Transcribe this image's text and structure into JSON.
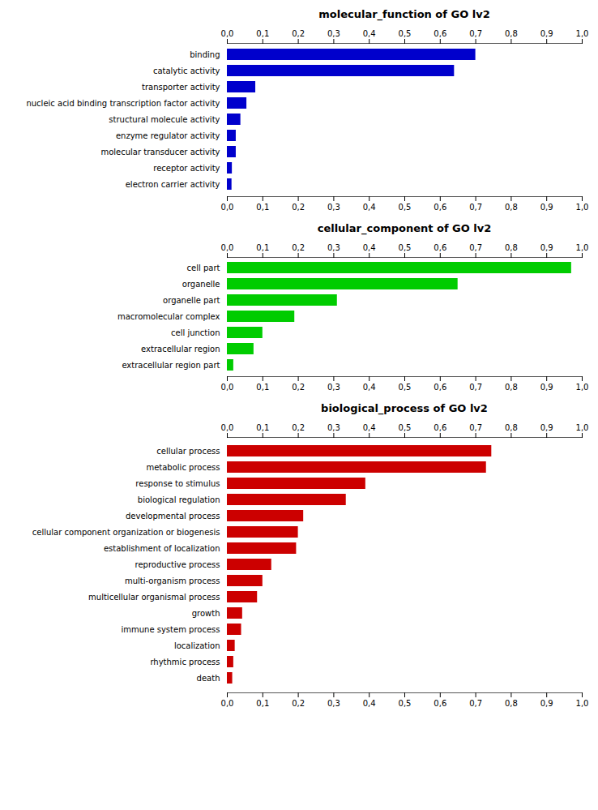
{
  "chart_data": [
    {
      "type": "bar",
      "orientation": "horizontal",
      "title": "molecular_function of GO lv2",
      "categories": [
        "binding",
        "catalytic activity",
        "transporter activity",
        "nucleic acid binding transcription factor activity",
        "structural molecule activity",
        "enzyme regulator activity",
        "molecular transducer activity",
        "receptor activity",
        "electron carrier activity"
      ],
      "values": [
        0.7,
        0.64,
        0.08,
        0.055,
        0.038,
        0.025,
        0.025,
        0.014,
        0.013
      ],
      "color": "#0000CC",
      "xlim": [
        0.0,
        1.0
      ],
      "xticks": [
        {
          "value": 0.0,
          "label": "0,0"
        },
        {
          "value": 0.1,
          "label": "0,1"
        },
        {
          "value": 0.2,
          "label": "0,2"
        },
        {
          "value": 0.3,
          "label": "0,3"
        },
        {
          "value": 0.4,
          "label": "0,4"
        },
        {
          "value": 0.5,
          "label": "0,5"
        },
        {
          "value": 0.6,
          "label": "0,6"
        },
        {
          "value": 0.7,
          "label": "0,7"
        },
        {
          "value": 0.8,
          "label": "0,8"
        },
        {
          "value": 0.9,
          "label": "0,9"
        },
        {
          "value": 1.0,
          "label": "1,0"
        }
      ],
      "grid": false
    },
    {
      "type": "bar",
      "orientation": "horizontal",
      "title": "cellular_component of GO lv2",
      "categories": [
        "cell part",
        "organelle",
        "organelle part",
        "macromolecular complex",
        "cell junction",
        "extracellular region",
        "extracellular region part"
      ],
      "values": [
        0.97,
        0.65,
        0.31,
        0.19,
        0.1,
        0.075,
        0.018
      ],
      "color": "#00CC00",
      "xlim": [
        0.0,
        1.0
      ],
      "xticks": [
        {
          "value": 0.0,
          "label": "0,0"
        },
        {
          "value": 0.1,
          "label": "0,1"
        },
        {
          "value": 0.2,
          "label": "0,2"
        },
        {
          "value": 0.3,
          "label": "0,3"
        },
        {
          "value": 0.4,
          "label": "0,4"
        },
        {
          "value": 0.5,
          "label": "0,5"
        },
        {
          "value": 0.6,
          "label": "0,6"
        },
        {
          "value": 0.7,
          "label": "0,7"
        },
        {
          "value": 0.8,
          "label": "0,8"
        },
        {
          "value": 0.9,
          "label": "0,9"
        },
        {
          "value": 1.0,
          "label": "1,0"
        }
      ],
      "grid": false
    },
    {
      "type": "bar",
      "orientation": "horizontal",
      "title": "biological_process of GO lv2",
      "categories": [
        "cellular process",
        "metabolic process",
        "response to stimulus",
        "biological regulation",
        "developmental process",
        "cellular component organization or biogenesis",
        "establishment of localization",
        "reproductive process",
        "multi-organism process",
        "multicellular organismal process",
        "growth",
        "immune system process",
        "localization",
        "rhythmic process",
        "death"
      ],
      "values": [
        0.745,
        0.73,
        0.39,
        0.335,
        0.215,
        0.2,
        0.195,
        0.125,
        0.1,
        0.085,
        0.043,
        0.04,
        0.022,
        0.018,
        0.015
      ],
      "color": "#CC0000",
      "xlim": [
        0.0,
        1.0
      ],
      "xticks": [
        {
          "value": 0.0,
          "label": "0,0"
        },
        {
          "value": 0.1,
          "label": "0,1"
        },
        {
          "value": 0.2,
          "label": "0,2"
        },
        {
          "value": 0.3,
          "label": "0,3"
        },
        {
          "value": 0.4,
          "label": "0,4"
        },
        {
          "value": 0.5,
          "label": "0,5"
        },
        {
          "value": 0.6,
          "label": "0,6"
        },
        {
          "value": 0.7,
          "label": "0,7"
        },
        {
          "value": 0.8,
          "label": "0,8"
        },
        {
          "value": 0.9,
          "label": "0,9"
        },
        {
          "value": 1.0,
          "label": "1,0"
        }
      ],
      "grid": false
    }
  ]
}
